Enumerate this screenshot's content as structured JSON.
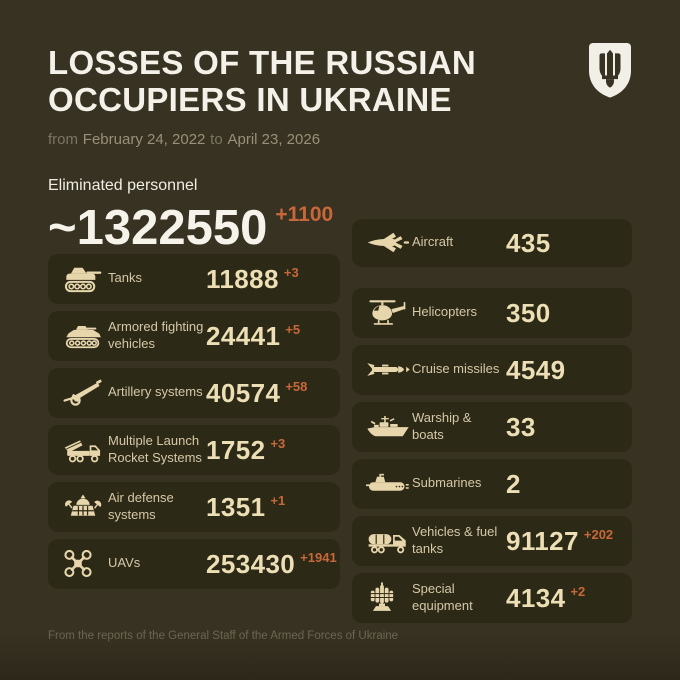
{
  "header": {
    "title_line1": "LOSSES OF THE RUSSIAN",
    "title_line2": "OCCUPIERS IN UKRAINE",
    "subtitle": {
      "prefix": "from",
      "date_from": "February 24, 2022",
      "connector": "to",
      "date_to": "April 23, 2026"
    },
    "logo": "ukraine-trident-shield"
  },
  "personnel": {
    "label": "Eliminated personnel",
    "value": "~1322550",
    "delta": "+1100"
  },
  "stats_left": [
    {
      "icon": "tank-icon",
      "label": "Tanks",
      "value": "11888",
      "delta": "+3"
    },
    {
      "icon": "armored-vehicle-icon",
      "label": "Armored fighting vehicles",
      "value": "24441",
      "delta": "+5"
    },
    {
      "icon": "artillery-icon",
      "label": "Artillery systems",
      "value": "40574",
      "delta": "+58"
    },
    {
      "icon": "mlrs-icon",
      "label": "Multiple Launch Rocket Systems",
      "value": "1752",
      "delta": "+3"
    },
    {
      "icon": "air-defense-icon",
      "label": "Air defense systems",
      "value": "1351",
      "delta": "+1"
    },
    {
      "icon": "uav-icon",
      "label": "UAVs",
      "value": "253430",
      "delta": "+1941"
    }
  ],
  "stats_right": [
    {
      "icon": "aircraft-icon",
      "label": "Aircraft",
      "value": "435",
      "delta": ""
    },
    {
      "icon": "helicopter-icon",
      "label": "Helicopters",
      "value": "350",
      "delta": ""
    },
    {
      "icon": "cruise-missile-icon",
      "label": "Cruise missiles",
      "value": "4549",
      "delta": ""
    },
    {
      "icon": "warship-icon",
      "label": "Warship & boats",
      "value": "33",
      "delta": ""
    },
    {
      "icon": "submarine-icon",
      "label": "Submarines",
      "value": "2",
      "delta": ""
    },
    {
      "icon": "vehicles-fuel-icon",
      "label": "Vehicles & fuel tanks",
      "value": "91127",
      "delta": "+202"
    },
    {
      "icon": "special-equipment-icon",
      "label": "Special equipment",
      "value": "4134",
      "delta": "+2"
    }
  ],
  "footer": {
    "source": "From the reports of the General Staff of the Armed Forces of Ukraine"
  },
  "colors": {
    "background": "#383222",
    "card": "#2d2917",
    "cream": "#e7d6ab",
    "value_cream": "#eddfb5",
    "accent_orange": "#c8683a",
    "white": "#f4f1e9",
    "muted": "#7d7563"
  },
  "chart_data": {
    "type": "table",
    "title": "Losses of the Russian occupiers in Ukraine",
    "period": "from February 24, 2022 to April 23, 2026",
    "categories": [
      "Eliminated personnel",
      "Tanks",
      "Armored fighting vehicles",
      "Artillery systems",
      "Multiple Launch Rocket Systems",
      "Air defense systems",
      "UAVs",
      "Aircraft",
      "Helicopters",
      "Cruise missiles",
      "Warship & boats",
      "Submarines",
      "Vehicles & fuel tanks",
      "Special equipment"
    ],
    "values": [
      1322550,
      11888,
      24441,
      40574,
      1752,
      1351,
      253430,
      435,
      350,
      4549,
      33,
      2,
      91127,
      4134
    ],
    "daily_change": [
      1100,
      3,
      5,
      58,
      3,
      1,
      1941,
      0,
      0,
      0,
      0,
      0,
      202,
      2
    ],
    "source": "From the reports of the General Staff of the Armed Forces of Ukraine"
  }
}
